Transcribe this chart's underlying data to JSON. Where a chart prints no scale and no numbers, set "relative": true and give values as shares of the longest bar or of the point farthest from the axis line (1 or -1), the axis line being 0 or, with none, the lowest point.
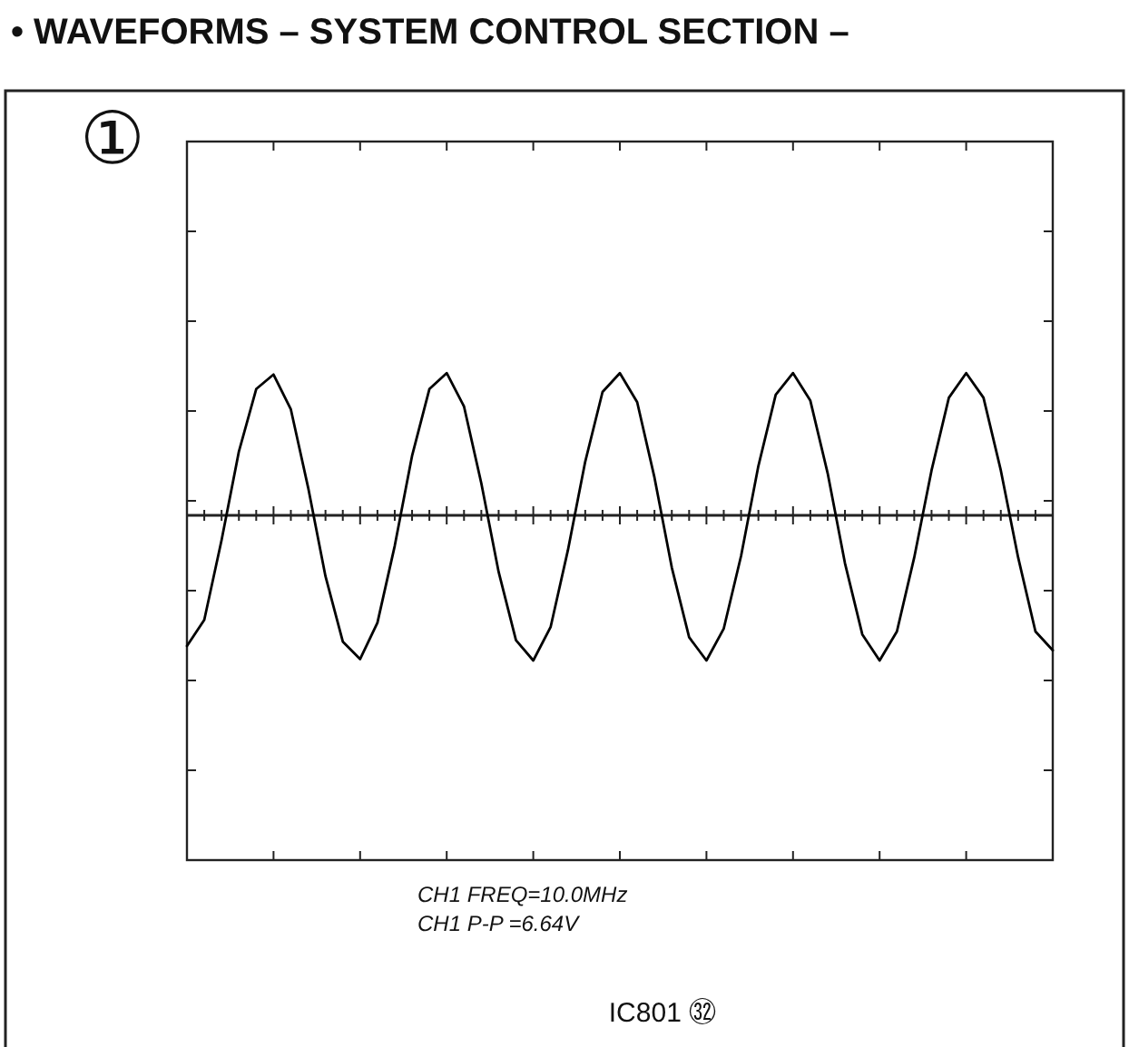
{
  "chart_data": {
    "type": "line",
    "relative": true,
    "title": "• WAVEFORMS – SYSTEM CONTROL SECTION –",
    "annotations": [
      "①",
      "CH1  FREQ=10.0MHz",
      "CH1  P-P  =6.64V",
      "IC801 ㉜"
    ],
    "categories": [
      null,
      null,
      null,
      null,
      null,
      null,
      null,
      null,
      null,
      null,
      null,
      null,
      null,
      null,
      null,
      null,
      null,
      null,
      null,
      null,
      null,
      null,
      null,
      null,
      null,
      null,
      null,
      null,
      null,
      null,
      null,
      null,
      null,
      null,
      null,
      null,
      null,
      null,
      null,
      null,
      null,
      null,
      null,
      null,
      null,
      null,
      null,
      null,
      null,
      null,
      null
    ],
    "series": [
      {
        "color": "#000000",
        "values": [
          -0.9,
          -0.72,
          -0.17,
          0.44,
          0.87,
          0.97,
          0.73,
          0.19,
          -0.42,
          -0.87,
          -0.99,
          -0.74,
          -0.21,
          0.41,
          0.87,
          0.98,
          0.75,
          0.22,
          -0.39,
          -0.86,
          -1.0,
          -0.77,
          -0.24,
          0.37,
          0.85,
          0.98,
          0.78,
          0.26,
          -0.36,
          -0.84,
          -1.0,
          -0.78,
          -0.28,
          0.34,
          0.83,
          0.98,
          0.79,
          0.29,
          -0.33,
          -0.82,
          -1.0,
          -0.8,
          -0.29,
          0.31,
          0.81,
          0.98,
          0.81,
          0.31,
          -0.29,
          -0.8,
          -0.93
        ]
      }
    ]
  }
}
